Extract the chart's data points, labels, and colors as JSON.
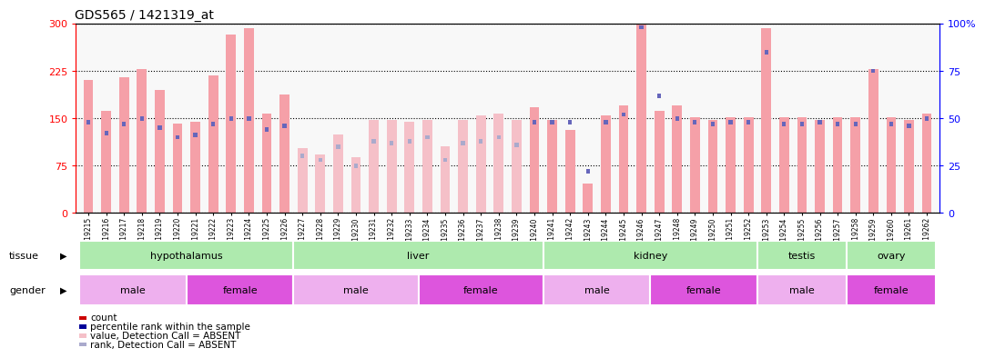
{
  "title": "GDS565 / 1421319_at",
  "samples": [
    "GSM19215",
    "GSM19216",
    "GSM19217",
    "GSM19218",
    "GSM19219",
    "GSM19220",
    "GSM19221",
    "GSM19222",
    "GSM19223",
    "GSM19224",
    "GSM19225",
    "GSM19226",
    "GSM19227",
    "GSM19228",
    "GSM19229",
    "GSM19230",
    "GSM19231",
    "GSM19232",
    "GSM19233",
    "GSM19234",
    "GSM19235",
    "GSM19236",
    "GSM19237",
    "GSM19238",
    "GSM19239",
    "GSM19240",
    "GSM19241",
    "GSM19242",
    "GSM19243",
    "GSM19244",
    "GSM19245",
    "GSM19246",
    "GSM19247",
    "GSM19248",
    "GSM19249",
    "GSM19250",
    "GSM19251",
    "GSM19252",
    "GSM19253",
    "GSM19254",
    "GSM19255",
    "GSM19256",
    "GSM19257",
    "GSM19258",
    "GSM19259",
    "GSM19260",
    "GSM19261",
    "GSM19262"
  ],
  "count_values": [
    210,
    162,
    215,
    228,
    195,
    142,
    145,
    218,
    283,
    292,
    158,
    188,
    102,
    92,
    125,
    88,
    148,
    148,
    145,
    148,
    105,
    147,
    155,
    158,
    147,
    168,
    148,
    132,
    47,
    155,
    170,
    300,
    162,
    170,
    152,
    148,
    152,
    152,
    292,
    152,
    152,
    148,
    152,
    152,
    228,
    152,
    148,
    158
  ],
  "rank_values": [
    48,
    42,
    47,
    50,
    45,
    40,
    41,
    47,
    50,
    50,
    44,
    46,
    30,
    28,
    35,
    25,
    38,
    37,
    38,
    40,
    28,
    37,
    38,
    40,
    36,
    48,
    48,
    48,
    22,
    48,
    52,
    98,
    62,
    50,
    48,
    47,
    48,
    48,
    85,
    47,
    47,
    48,
    47,
    47,
    75,
    47,
    46,
    50
  ],
  "absent_mask": [
    false,
    false,
    false,
    false,
    false,
    false,
    false,
    false,
    false,
    false,
    false,
    false,
    true,
    true,
    true,
    true,
    true,
    true,
    true,
    true,
    true,
    true,
    true,
    true,
    true,
    false,
    false,
    false,
    false,
    false,
    false,
    false,
    false,
    false,
    false,
    false,
    false,
    false,
    false,
    false,
    false,
    false,
    false,
    false,
    false,
    false,
    false,
    false
  ],
  "tissue_groups": [
    {
      "label": "hypothalamus",
      "start": 0,
      "end": 12,
      "color": "#AEEAAE"
    },
    {
      "label": "liver",
      "start": 12,
      "end": 26,
      "color": "#AEEAAE"
    },
    {
      "label": "kidney",
      "start": 26,
      "end": 38,
      "color": "#AEEAAE"
    },
    {
      "label": "testis",
      "start": 38,
      "end": 43,
      "color": "#AEEAAE"
    },
    {
      "label": "ovary",
      "start": 43,
      "end": 48,
      "color": "#AEEAAE"
    }
  ],
  "gender_groups": [
    {
      "label": "male",
      "start": 0,
      "end": 6,
      "color": "#EEB0EE"
    },
    {
      "label": "female",
      "start": 6,
      "end": 12,
      "color": "#DD55DD"
    },
    {
      "label": "male",
      "start": 12,
      "end": 19,
      "color": "#EEB0EE"
    },
    {
      "label": "female",
      "start": 19,
      "end": 26,
      "color": "#DD55DD"
    },
    {
      "label": "male",
      "start": 26,
      "end": 32,
      "color": "#EEB0EE"
    },
    {
      "label": "female",
      "start": 32,
      "end": 38,
      "color": "#DD55DD"
    },
    {
      "label": "male",
      "start": 38,
      "end": 43,
      "color": "#EEB0EE"
    },
    {
      "label": "female",
      "start": 43,
      "end": 48,
      "color": "#DD55DD"
    }
  ],
  "ylim_left": [
    0,
    300
  ],
  "ylim_right": [
    0,
    100
  ],
  "yticks_left": [
    0,
    75,
    150,
    225,
    300
  ],
  "yticks_right": [
    0,
    25,
    50,
    75,
    100
  ],
  "bar_color_present": "#F5A0A8",
  "bar_color_absent": "#F5C0C8",
  "rank_color_present": "#6666BB",
  "rank_color_absent": "#AAAACC",
  "bg_color": "#F8F8F8",
  "legend_items": [
    {
      "label": "count",
      "color": "#CC0000"
    },
    {
      "label": "percentile rank within the sample",
      "color": "#000099"
    },
    {
      "label": "value, Detection Call = ABSENT",
      "color": "#F5C0C8"
    },
    {
      "label": "rank, Detection Call = ABSENT",
      "color": "#AAAACC"
    }
  ]
}
